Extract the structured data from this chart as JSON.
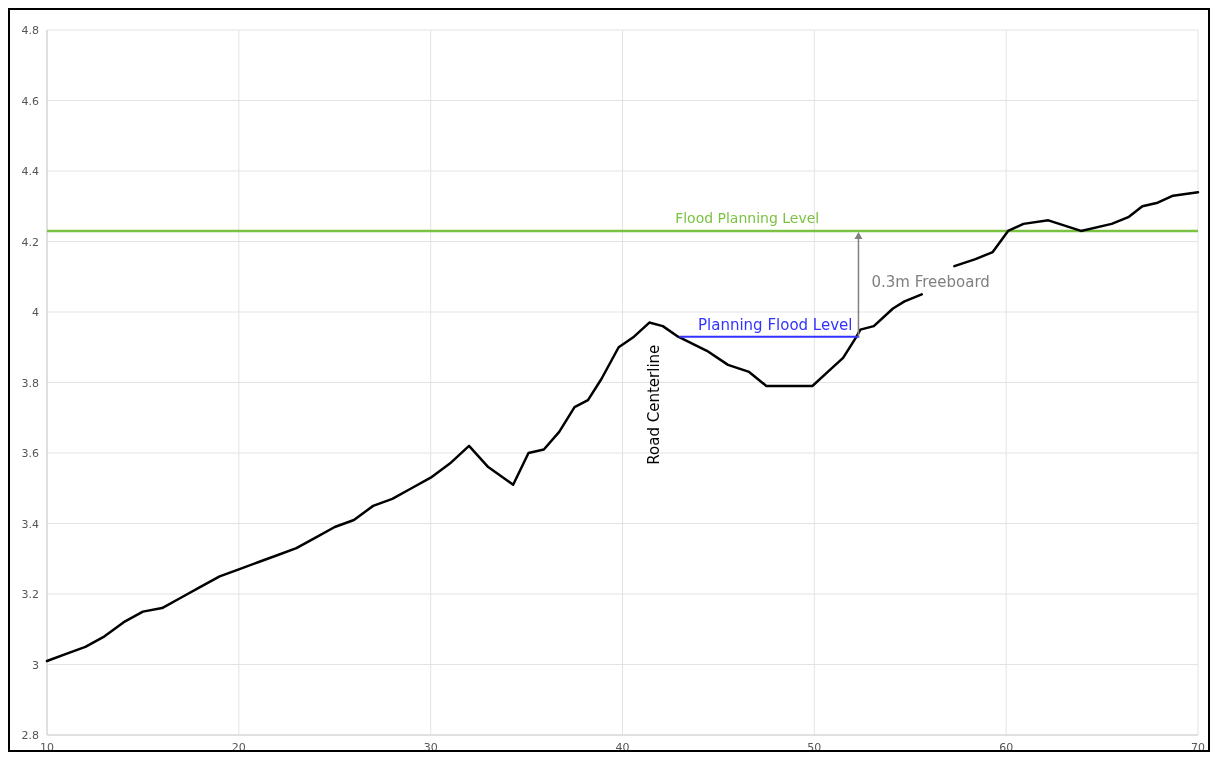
{
  "chart_data": {
    "type": "line",
    "xlim": [
      10,
      70
    ],
    "ylim": [
      2.8,
      4.8
    ],
    "xticks": [
      10,
      20,
      30,
      40,
      50,
      60,
      70
    ],
    "yticks": [
      2.8,
      3,
      3.2,
      3.4,
      3.6,
      3.8,
      4,
      4.2,
      4.4,
      4.6,
      4.8
    ],
    "grid": true,
    "marker": "none",
    "line_style": "solid",
    "series": [
      {
        "color": "#000000",
        "x": [
          10,
          11,
          12,
          13,
          14,
          15,
          16,
          17,
          18,
          19,
          20,
          21,
          22,
          23,
          24,
          25,
          26,
          27,
          28,
          29,
          30,
          31,
          32,
          33,
          34.3,
          35.1,
          35.9,
          36.7,
          37.5,
          38.2,
          38.9,
          39.8,
          40.6,
          41.4,
          42.1,
          42.9,
          44.4,
          45.5,
          46.6,
          47.5,
          49.1,
          49.9,
          50.7,
          51.5,
          52.2,
          52.4,
          53.1,
          54.1,
          54.7,
          55.6,
          56.4,
          57.3,
          58.4,
          59.3,
          60.1,
          60.9,
          62.2,
          63.9,
          65.5,
          66.4,
          67.1,
          67.9,
          68.7,
          70
        ],
        "values": [
          3.01,
          3.03,
          3.05,
          3.08,
          3.12,
          3.15,
          3.16,
          3.19,
          3.22,
          3.25,
          3.27,
          3.29,
          3.31,
          3.33,
          3.36,
          3.39,
          3.41,
          3.45,
          3.47,
          3.5,
          3.53,
          3.57,
          3.62,
          3.56,
          3.51,
          3.6,
          3.61,
          3.66,
          3.73,
          3.75,
          3.81,
          3.9,
          3.93,
          3.97,
          3.96,
          3.93,
          3.89,
          3.85,
          3.83,
          3.79,
          3.79,
          3.79,
          3.83,
          3.87,
          3.93,
          3.95,
          3.96,
          4.01,
          4.03,
          4.05,
          null,
          4.13,
          4.15,
          4.17,
          4.23,
          4.25,
          4.26,
          4.23,
          4.25,
          4.27,
          4.3,
          4.31,
          4.33,
          4.34
        ]
      },
      {
        "name": "Planning Flood Level",
        "color": "#3333ff",
        "x": [
          43,
          52.3
        ],
        "values": [
          3.93,
          3.93
        ]
      }
    ],
    "ref_lines": [
      {
        "axis": "y",
        "value": 4.23,
        "label": "Flood Planning Level",
        "color": "#7cc242",
        "line_style": "solid"
      }
    ],
    "annotations": [
      "Road Centerline",
      "0.3m Freeboard"
    ]
  }
}
